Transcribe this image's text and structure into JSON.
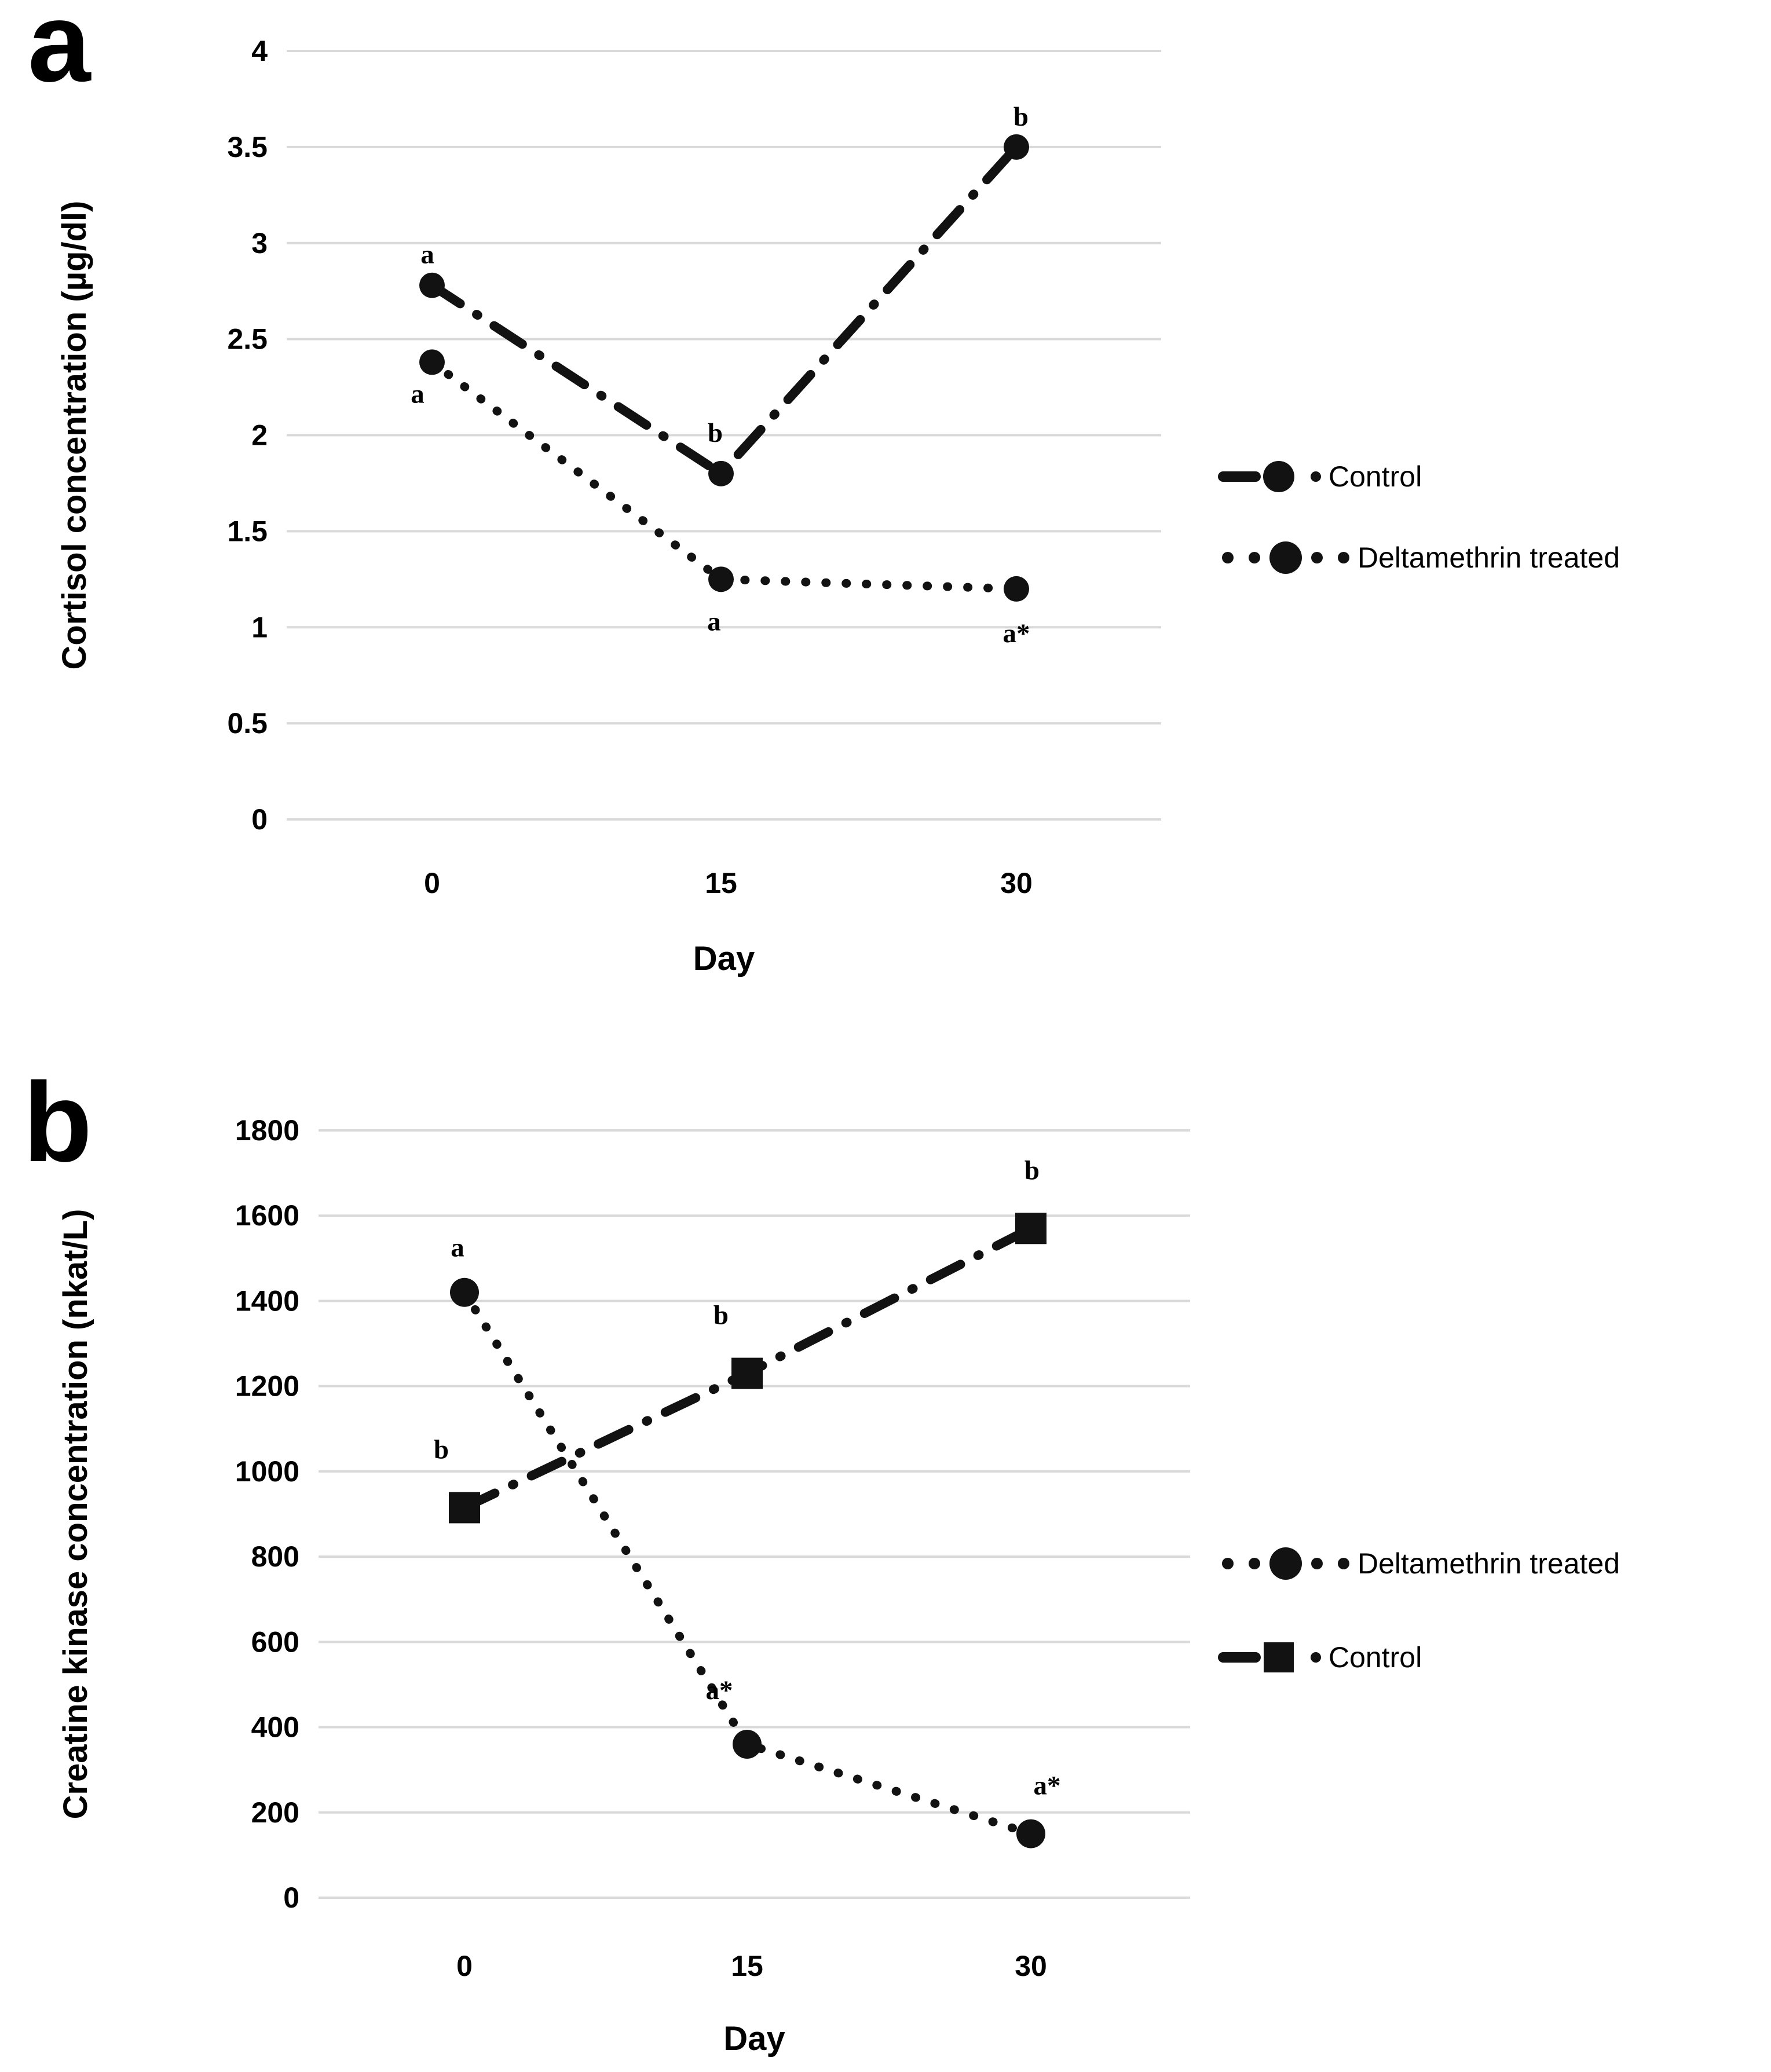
{
  "figure_title": "",
  "colors": {
    "series": "#121212",
    "gridline": "#d9d9d9",
    "background": "#ffffff",
    "text": "#000000"
  },
  "chart_data": [
    {
      "id": "a",
      "type": "line",
      "panel_label": "a",
      "categories": [
        "0",
        "15",
        "30"
      ],
      "xlabel": "Day",
      "ylabel": "Cortisol concentration (µg/dl)",
      "ylim": [
        0,
        4
      ],
      "ytick_interval": 0.5,
      "ytick_labels": [
        "0",
        "0.5",
        "1",
        "1.5",
        "2",
        "2.5",
        "3",
        "3.5",
        "4"
      ],
      "grid": true,
      "legend_position": "right",
      "legend_order": [
        "Control",
        "Deltamethrin treated"
      ],
      "series": [
        {
          "name": "Control",
          "line_style": "dash-dot",
          "marker": "circle",
          "values": [
            2.78,
            1.8,
            3.5
          ],
          "point_labels": [
            {
              "text": "a",
              "dx": -8,
              "dy": -38
            },
            {
              "text": "b",
              "dx": -10,
              "dy": -55
            },
            {
              "text": "b",
              "dx": 8,
              "dy": -37
            }
          ]
        },
        {
          "name": "Deltamethrin treated",
          "line_style": "dotted",
          "marker": "circle",
          "values": [
            2.38,
            1.25,
            1.2
          ],
          "point_labels": [
            {
              "text": "a",
              "dx": -25,
              "dy": 70
            },
            {
              "text": "a",
              "dx": -12,
              "dy": 88
            },
            {
              "text": "a*",
              "dx": 0,
              "dy": 92
            }
          ]
        }
      ]
    },
    {
      "id": "b",
      "type": "line",
      "panel_label": "b",
      "categories": [
        "0",
        "15",
        "30"
      ],
      "xlabel": "Day",
      "ylabel": "Creatine kinase concentration (nkat/L)",
      "ylim": [
        0,
        1800
      ],
      "ytick_interval": 200,
      "ytick_labels": [
        "0",
        "200",
        "400",
        "600",
        "800",
        "1000",
        "1200",
        "1400",
        "1600",
        "1800"
      ],
      "grid": true,
      "legend_position": "right",
      "legend_order": [
        "Deltamethrin treated",
        "Control"
      ],
      "series": [
        {
          "name": "Deltamethrin treated",
          "line_style": "dotted",
          "marker": "circle",
          "values": [
            1420,
            360,
            150
          ],
          "point_labels": [
            {
              "text": "a",
              "dx": -12,
              "dy": -62
            },
            {
              "text": "a*",
              "dx": -48,
              "dy": -78
            },
            {
              "text": "a*",
              "dx": 28,
              "dy": -68
            }
          ]
        },
        {
          "name": "Control",
          "line_style": "dash-dot",
          "marker": "square",
          "values": [
            915,
            1230,
            1570
          ],
          "point_labels": [
            {
              "text": "b",
              "dx": -40,
              "dy": -85
            },
            {
              "text": "b",
              "dx": -45,
              "dy": -85
            },
            {
              "text": "b",
              "dx": 2,
              "dy": -85
            }
          ]
        }
      ]
    }
  ]
}
